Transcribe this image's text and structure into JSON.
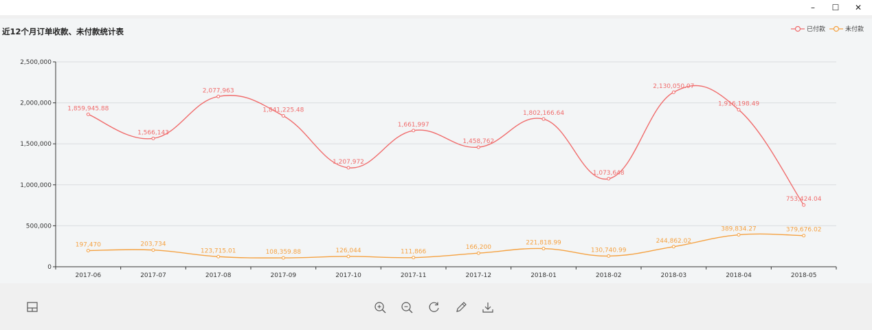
{
  "window": {
    "minimize": "–",
    "maximize": "☐",
    "close": "✕"
  },
  "chart_data": {
    "type": "line",
    "title": "近12个月订单收款、未付款统计表",
    "categories": [
      "2017-06",
      "2017-07",
      "2017-08",
      "2017-09",
      "2017-10",
      "2017-11",
      "2017-12",
      "2018-01",
      "2018-02",
      "2018-03",
      "2018-04",
      "2018-05"
    ],
    "series": [
      {
        "name": "已付款",
        "color": "#f06b6b",
        "values": [
          1859945.88,
          1566143,
          2077963,
          1841225.48,
          1207972,
          1661997,
          1458762,
          1802166.64,
          1073648,
          2130050.07,
          1916198.49,
          753424.04
        ],
        "labels": [
          "1,859,945.88",
          "1,566,143",
          "2,077,963",
          "1,841,225.48",
          "1,207,972",
          "1,661,997",
          "1,458,762",
          "1,802,166.64",
          "1,073,648",
          "2,130,050.07",
          "1,916,198.49",
          "753,424.04"
        ]
      },
      {
        "name": "未付款",
        "color": "#f5a140",
        "values": [
          197470,
          203734,
          123715.01,
          108359.88,
          126044,
          111866,
          166200,
          221818.99,
          130740.99,
          244862.02,
          389834.27,
          379676.02
        ],
        "labels": [
          "197,470",
          "203,734",
          "123,715.01",
          "108,359.88",
          "126,044",
          "111,866",
          "166,200",
          "221,818.99",
          "130,740.99",
          "244,862.02",
          "389,834.27",
          "379,676.02"
        ]
      }
    ],
    "y_ticks": [
      0,
      500000,
      1000000,
      1500000,
      2000000,
      2500000
    ],
    "y_tick_labels": [
      "0",
      "500,000",
      "1,000,000",
      "1,500,000",
      "2,000,000",
      "2,500,000"
    ],
    "ylim": [
      0,
      2500000
    ],
    "grid": true,
    "legend_position": "top-right"
  },
  "toolbar": {
    "icons": [
      "layout-icon",
      "zoom-in-icon",
      "zoom-out-icon",
      "rotate-icon",
      "edit-icon",
      "download-icon"
    ]
  }
}
